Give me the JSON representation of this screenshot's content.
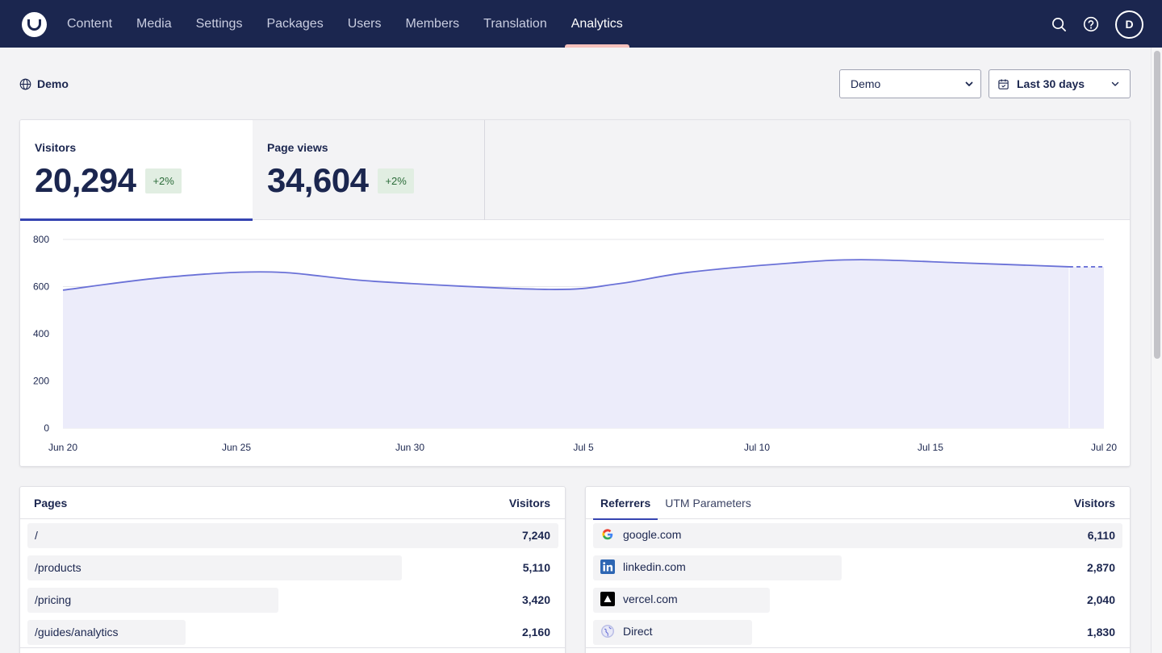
{
  "nav": {
    "items": [
      {
        "label": "Content"
      },
      {
        "label": "Media"
      },
      {
        "label": "Settings"
      },
      {
        "label": "Packages"
      },
      {
        "label": "Users"
      },
      {
        "label": "Members"
      },
      {
        "label": "Translation"
      },
      {
        "label": "Analytics",
        "active": true
      }
    ],
    "avatar_initial": "D"
  },
  "header": {
    "site_label": "Demo",
    "site_select": "Demo",
    "range_select": "Last 30 days"
  },
  "metrics": [
    {
      "label": "Visitors",
      "value": "20,294",
      "change": "+2%",
      "active": true
    },
    {
      "label": "Page views",
      "value": "34,604",
      "change": "+2%",
      "active": false
    }
  ],
  "chart_data": {
    "type": "area",
    "x_labels": [
      "Jun 20",
      "Jun 25",
      "Jun 30",
      "Jul 5",
      "Jul 10",
      "Jul 15",
      "Jul 20"
    ],
    "x_positions": [
      0,
      5,
      10,
      15,
      20,
      25,
      30
    ],
    "y_ticks": [
      "800",
      "600",
      "400",
      "200",
      "0"
    ],
    "ylim": [
      0,
      800
    ],
    "series": [
      {
        "values": [
          585,
          640,
          662,
          622,
          588,
          612,
          660,
          700,
          714,
          700,
          684,
          684
        ],
        "x": [
          0,
          3,
          6,
          9,
          14,
          16,
          18,
          21,
          23,
          26,
          29,
          30
        ],
        "dashed_from_x": 29
      }
    ],
    "grid": true,
    "accent": "#6a71d7",
    "fill": "#ececfa"
  },
  "pages": {
    "header_label": "Pages",
    "header_value": "Visitors",
    "rows": [
      {
        "label": "/",
        "value": "7,240",
        "fraction": 1.0
      },
      {
        "label": "/products",
        "value": "5,110",
        "fraction": 0.705
      },
      {
        "label": "/pricing",
        "value": "3,420",
        "fraction": 0.472
      },
      {
        "label": "/guides/analytics",
        "value": "2,160",
        "fraction": 0.298
      }
    ]
  },
  "referrers": {
    "tabs": [
      {
        "label": "Referrers",
        "active": true
      },
      {
        "label": "UTM Parameters",
        "active": false
      }
    ],
    "header_value": "Visitors",
    "rows": [
      {
        "label": "google.com",
        "value": "6,110",
        "fraction": 1.0,
        "icon": "google-icon"
      },
      {
        "label": "linkedin.com",
        "value": "2,870",
        "fraction": 0.47,
        "icon": "linkedin-icon"
      },
      {
        "label": "vercel.com",
        "value": "2,040",
        "fraction": 0.334,
        "icon": "vercel-icon"
      },
      {
        "label": "Direct",
        "value": "1,830",
        "fraction": 0.3,
        "icon": "globe-icon"
      }
    ]
  }
}
